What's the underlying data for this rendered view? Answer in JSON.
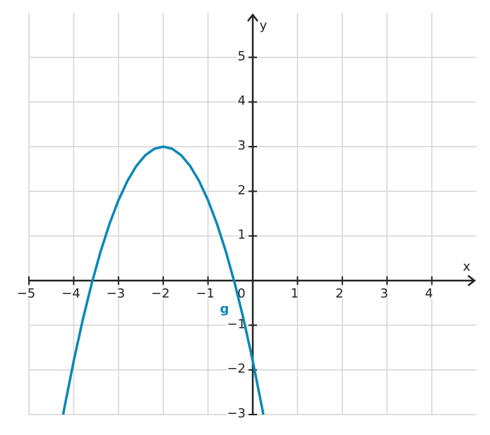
{
  "chart_data": {
    "type": "line",
    "x_label": "x",
    "y_label": "y",
    "x": [
      -4.236,
      -4.2,
      -4.0,
      -3.8,
      -3.6,
      -3.4,
      -3.2,
      -3.0,
      -2.8,
      -2.6,
      -2.4,
      -2.2,
      -2.0,
      -1.8,
      -1.6,
      -1.4,
      -1.2,
      -1.0,
      -0.8,
      -0.6,
      -0.4,
      -0.2,
      0.0,
      0.2,
      0.236
    ],
    "series": [
      {
        "name": "g",
        "color": "#0a88b6",
        "values": [
          -3.0,
          -2.808,
          -1.8,
          -0.888,
          -0.072,
          0.648,
          1.272,
          1.8,
          2.232,
          2.568,
          2.808,
          2.952,
          3.0,
          2.952,
          2.808,
          2.568,
          2.232,
          1.8,
          1.272,
          0.648,
          -0.072,
          -0.888,
          -1.8,
          -2.808,
          -3.0
        ]
      }
    ],
    "xlim": [
      -5,
      5
    ],
    "ylim": [
      -3,
      6
    ],
    "xticks": [
      {
        "value": -5,
        "label": "−5"
      },
      {
        "value": -4,
        "label": "−4"
      },
      {
        "value": -3,
        "label": "−3"
      },
      {
        "value": -2,
        "label": "−2"
      },
      {
        "value": -1,
        "label": "−1"
      },
      0,
      1,
      2,
      3,
      4
    ],
    "yticks": [
      {
        "value": -3,
        "label": "−3"
      },
      {
        "value": -2,
        "label": "−2"
      },
      {
        "value": -1,
        "label": "−1"
      },
      1,
      2,
      3,
      4,
      5
    ],
    "grid": true
  }
}
